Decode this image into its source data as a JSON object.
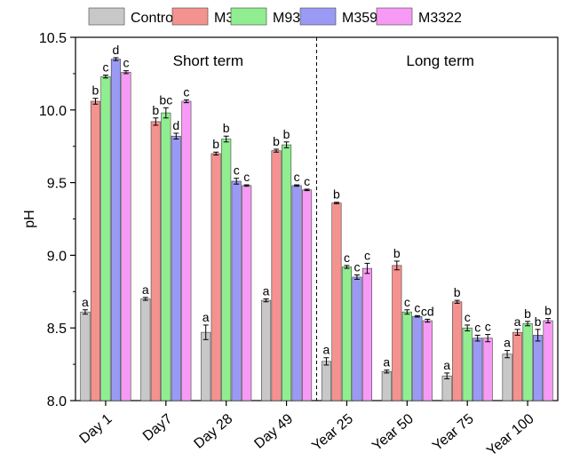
{
  "chart_data": {
    "type": "bar",
    "ylabel": "pH",
    "xlabel": "",
    "ylim": [
      8.0,
      10.5
    ],
    "yticks": [
      "8.0",
      "8.5",
      "9.0",
      "9.5",
      "10.0",
      "10.5"
    ],
    "categories": [
      "Day 1",
      "Day7",
      "Day 28",
      "Day 49",
      "Year 25",
      "Year 50",
      "Year 75",
      "Year 100"
    ],
    "legend_position": "top",
    "section_labels": [
      "Short term",
      "Long term"
    ],
    "section_divider_after_category": 3,
    "series": [
      {
        "name": "Control",
        "color": "#c8c8c8",
        "values": [
          8.61,
          8.7,
          8.47,
          8.69,
          8.27,
          8.2,
          8.17,
          8.32
        ],
        "errors": [
          0.015,
          0.01,
          0.05,
          0.01,
          0.025,
          0.01,
          0.02,
          0.025
        ],
        "letters": [
          "a",
          "a",
          "a",
          "a",
          "a",
          "a",
          "a",
          "a"
        ]
      },
      {
        "name": "M33",
        "color": "#f4928f",
        "values": [
          10.06,
          9.92,
          9.7,
          9.72,
          9.36,
          8.93,
          8.68,
          8.47
        ],
        "errors": [
          0.02,
          0.025,
          0.01,
          0.01,
          0.005,
          0.03,
          0.01,
          0.02
        ],
        "letters": [
          "b",
          "b",
          "b",
          "b",
          "b",
          "b",
          "b",
          "a"
        ]
      },
      {
        "name": "M93",
        "color": "#90ee90",
        "values": [
          10.23,
          9.98,
          9.8,
          9.76,
          8.92,
          8.61,
          8.5,
          8.53
        ],
        "errors": [
          0.01,
          0.035,
          0.02,
          0.02,
          0.01,
          0.015,
          0.02,
          0.015
        ],
        "letters": [
          "c",
          "bc",
          "b",
          "b",
          "c",
          "c",
          "c",
          "b"
        ]
      },
      {
        "name": "M359",
        "color": "#9a9af5",
        "values": [
          10.35,
          9.82,
          9.51,
          9.48,
          8.85,
          8.58,
          8.43,
          8.45
        ],
        "errors": [
          0.01,
          0.02,
          0.02,
          0.005,
          0.015,
          0.005,
          0.02,
          0.04
        ],
        "letters": [
          "d",
          "d",
          "c",
          "c",
          "c",
          "c",
          "c",
          "b"
        ]
      },
      {
        "name": "M3322",
        "color": "#f79af5",
        "values": [
          10.26,
          10.06,
          9.48,
          9.45,
          8.91,
          8.55,
          8.43,
          8.55
        ],
        "errors": [
          0.01,
          0.01,
          0.005,
          0.005,
          0.035,
          0.01,
          0.025,
          0.015
        ],
        "letters": [
          "c",
          "c",
          "c",
          "c",
          "c",
          "cd",
          "c",
          "b"
        ]
      }
    ]
  }
}
